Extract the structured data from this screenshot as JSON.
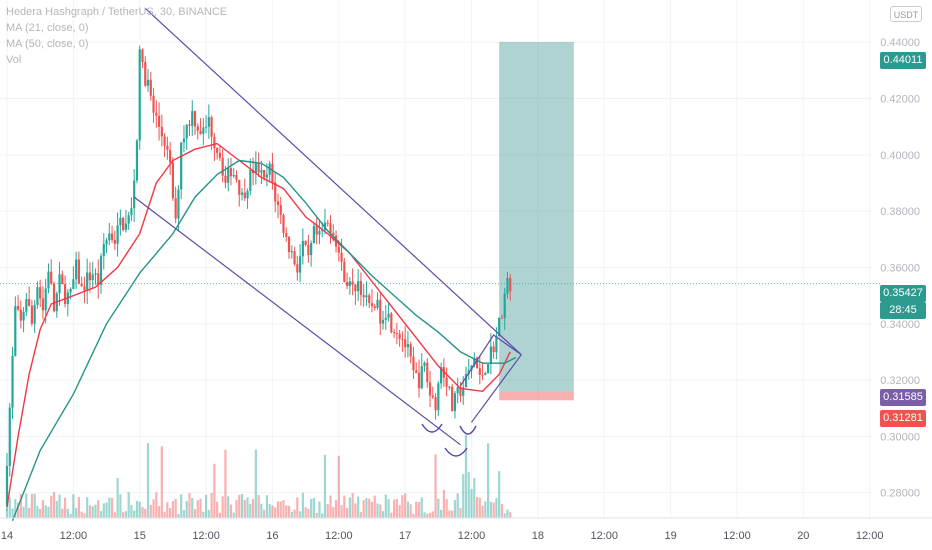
{
  "legend": {
    "title": "Hedera Hashgraph / TetherUS, 30, BINANCE",
    "ma21": "MA (21, close, 0)",
    "ma50": "MA (50, close, 0)",
    "vol": "Vol"
  },
  "currency_button": "USDT",
  "badges": {
    "target": "0.44011",
    "current_price": "0.35427",
    "countdown": "28:45",
    "entry": "0.31585",
    "stop": "0.31281"
  },
  "colors": {
    "up": "#26a69a",
    "down": "#ef5350",
    "ma21": "#f23645",
    "ma50": "#26938a",
    "channel": "#5b4bab",
    "target_zone": "#4b9e96",
    "stop_zone": "#ef5350",
    "entry_badge": "#7b5ea7"
  },
  "chart_data": {
    "type": "candlestick",
    "y_axis": {
      "ticks": [
        0.28,
        0.3,
        0.32,
        0.34,
        0.36,
        0.38,
        0.4,
        0.42,
        0.44
      ],
      "tick_labels": [
        "0.28000",
        "0.30000",
        "0.32000",
        "0.34000",
        "0.36000",
        "0.38000",
        "0.40000",
        "0.42000",
        "0.44000"
      ],
      "range": [
        0.271,
        0.455
      ]
    },
    "x_axis": {
      "range_hours": [
        -4,
        132
      ],
      "ticks": [
        {
          "h": 0,
          "label": "14"
        },
        {
          "h": 12,
          "label": "12:00"
        },
        {
          "h": 24,
          "label": "15"
        },
        {
          "h": 36,
          "label": "12:00"
        },
        {
          "h": 48,
          "label": "16"
        },
        {
          "h": 60,
          "label": "12:00"
        },
        {
          "h": 72,
          "label": "17"
        },
        {
          "h": 84,
          "label": "12:00"
        },
        {
          "h": 96,
          "label": "18"
        },
        {
          "h": 108,
          "label": "12:00"
        },
        {
          "h": 120,
          "label": "19"
        },
        {
          "h": 132,
          "label": "12:00"
        },
        {
          "h": 144,
          "label": "20"
        },
        {
          "h": 156,
          "label": "12:00"
        }
      ]
    },
    "price_path": [
      [
        0,
        0.275
      ],
      [
        1,
        0.31
      ],
      [
        2,
        0.345
      ],
      [
        3,
        0.34
      ],
      [
        4,
        0.35
      ],
      [
        5,
        0.34
      ],
      [
        6,
        0.355
      ],
      [
        7,
        0.345
      ],
      [
        8,
        0.36
      ],
      [
        9,
        0.345
      ],
      [
        10,
        0.355
      ],
      [
        11,
        0.35
      ],
      [
        12,
        0.35
      ],
      [
        13,
        0.36
      ],
      [
        14,
        0.352
      ],
      [
        15,
        0.356
      ],
      [
        16,
        0.358
      ],
      [
        17,
        0.355
      ],
      [
        18,
        0.368
      ],
      [
        19,
        0.372
      ],
      [
        20,
        0.37
      ],
      [
        21,
        0.376
      ],
      [
        22,
        0.375
      ],
      [
        23,
        0.38
      ],
      [
        24,
        0.405
      ],
      [
        24.5,
        0.44
      ],
      [
        25,
        0.43
      ],
      [
        26,
        0.425
      ],
      [
        27,
        0.415
      ],
      [
        28,
        0.41
      ],
      [
        29,
        0.405
      ],
      [
        30,
        0.395
      ],
      [
        31,
        0.375
      ],
      [
        32,
        0.405
      ],
      [
        33,
        0.41
      ],
      [
        34,
        0.415
      ],
      [
        35,
        0.41
      ],
      [
        36,
        0.408
      ],
      [
        37,
        0.412
      ],
      [
        38,
        0.405
      ],
      [
        39,
        0.4
      ],
      [
        40,
        0.39
      ],
      [
        41,
        0.395
      ],
      [
        42,
        0.392
      ],
      [
        43,
        0.385
      ],
      [
        44,
        0.39
      ],
      [
        45,
        0.395
      ],
      [
        46,
        0.395
      ],
      [
        47,
        0.39
      ],
      [
        48,
        0.395
      ],
      [
        49,
        0.385
      ],
      [
        50,
        0.378
      ],
      [
        51,
        0.37
      ],
      [
        52,
        0.365
      ],
      [
        53,
        0.36
      ],
      [
        54,
        0.368
      ],
      [
        55,
        0.362
      ],
      [
        56,
        0.372
      ],
      [
        57,
        0.37
      ],
      [
        58,
        0.375
      ],
      [
        59,
        0.375
      ],
      [
        60,
        0.37
      ],
      [
        61,
        0.36
      ],
      [
        62,
        0.355
      ],
      [
        63,
        0.352
      ],
      [
        64,
        0.355
      ],
      [
        65,
        0.35
      ],
      [
        66,
        0.345
      ],
      [
        67,
        0.348
      ],
      [
        68,
        0.343
      ],
      [
        69,
        0.345
      ],
      [
        70,
        0.34
      ],
      [
        71,
        0.338
      ],
      [
        72,
        0.335
      ],
      [
        73,
        0.33
      ],
      [
        74,
        0.322
      ],
      [
        75,
        0.32
      ],
      [
        76,
        0.325
      ],
      [
        77,
        0.315
      ],
      [
        78,
        0.312
      ],
      [
        79,
        0.325
      ],
      [
        80,
        0.32
      ],
      [
        81,
        0.31
      ],
      [
        82,
        0.315
      ],
      [
        83,
        0.318
      ],
      [
        84,
        0.322
      ],
      [
        85,
        0.328
      ],
      [
        86,
        0.32
      ],
      [
        87,
        0.325
      ],
      [
        88,
        0.33
      ],
      [
        89,
        0.335
      ],
      [
        90,
        0.345
      ],
      [
        90.5,
        0.35
      ],
      [
        91,
        0.354
      ]
    ],
    "ma21_path": [
      [
        0,
        0.275
      ],
      [
        2,
        0.3
      ],
      [
        4,
        0.322
      ],
      [
        6,
        0.338
      ],
      [
        8,
        0.347
      ],
      [
        12,
        0.35
      ],
      [
        16,
        0.353
      ],
      [
        20,
        0.36
      ],
      [
        24,
        0.372
      ],
      [
        27,
        0.39
      ],
      [
        30,
        0.398
      ],
      [
        34,
        0.402
      ],
      [
        38,
        0.404
      ],
      [
        42,
        0.398
      ],
      [
        46,
        0.392
      ],
      [
        50,
        0.388
      ],
      [
        54,
        0.378
      ],
      [
        58,
        0.372
      ],
      [
        62,
        0.365
      ],
      [
        66,
        0.355
      ],
      [
        70,
        0.345
      ],
      [
        74,
        0.335
      ],
      [
        78,
        0.325
      ],
      [
        82,
        0.317
      ],
      [
        86,
        0.316
      ],
      [
        89,
        0.322
      ],
      [
        91,
        0.33
      ]
    ],
    "ma50_path": [
      [
        1,
        0.27
      ],
      [
        6,
        0.295
      ],
      [
        12,
        0.315
      ],
      [
        18,
        0.34
      ],
      [
        24,
        0.358
      ],
      [
        30,
        0.372
      ],
      [
        34,
        0.385
      ],
      [
        38,
        0.393
      ],
      [
        42,
        0.398
      ],
      [
        46,
        0.397
      ],
      [
        50,
        0.392
      ],
      [
        54,
        0.383
      ],
      [
        58,
        0.373
      ],
      [
        62,
        0.365
      ],
      [
        66,
        0.357
      ],
      [
        70,
        0.35
      ],
      [
        74,
        0.343
      ],
      [
        78,
        0.337
      ],
      [
        82,
        0.33
      ],
      [
        86,
        0.326
      ],
      [
        90,
        0.326
      ],
      [
        92,
        0.328
      ]
    ],
    "channel": {
      "upper": [
        [
          25,
          0.452
        ],
        [
          93,
          0.329
        ]
      ],
      "lower": [
        [
          23,
          0.385
        ],
        [
          82,
          0.297
        ]
      ],
      "wedge_upper": [
        [
          82,
          0.318
        ],
        [
          88,
          0.336
        ],
        [
          93,
          0.329
        ]
      ],
      "wedge_lower": [
        [
          84,
          0.305
        ],
        [
          93,
          0.329
        ]
      ]
    },
    "position": {
      "x_range_hours": [
        89,
        102.5
      ],
      "target": 0.44011,
      "entry": 0.31585,
      "stop": 0.31281
    },
    "current_price": 0.35427,
    "annotations": [
      "cup-left",
      "cup-right",
      "cup-bottom"
    ]
  }
}
